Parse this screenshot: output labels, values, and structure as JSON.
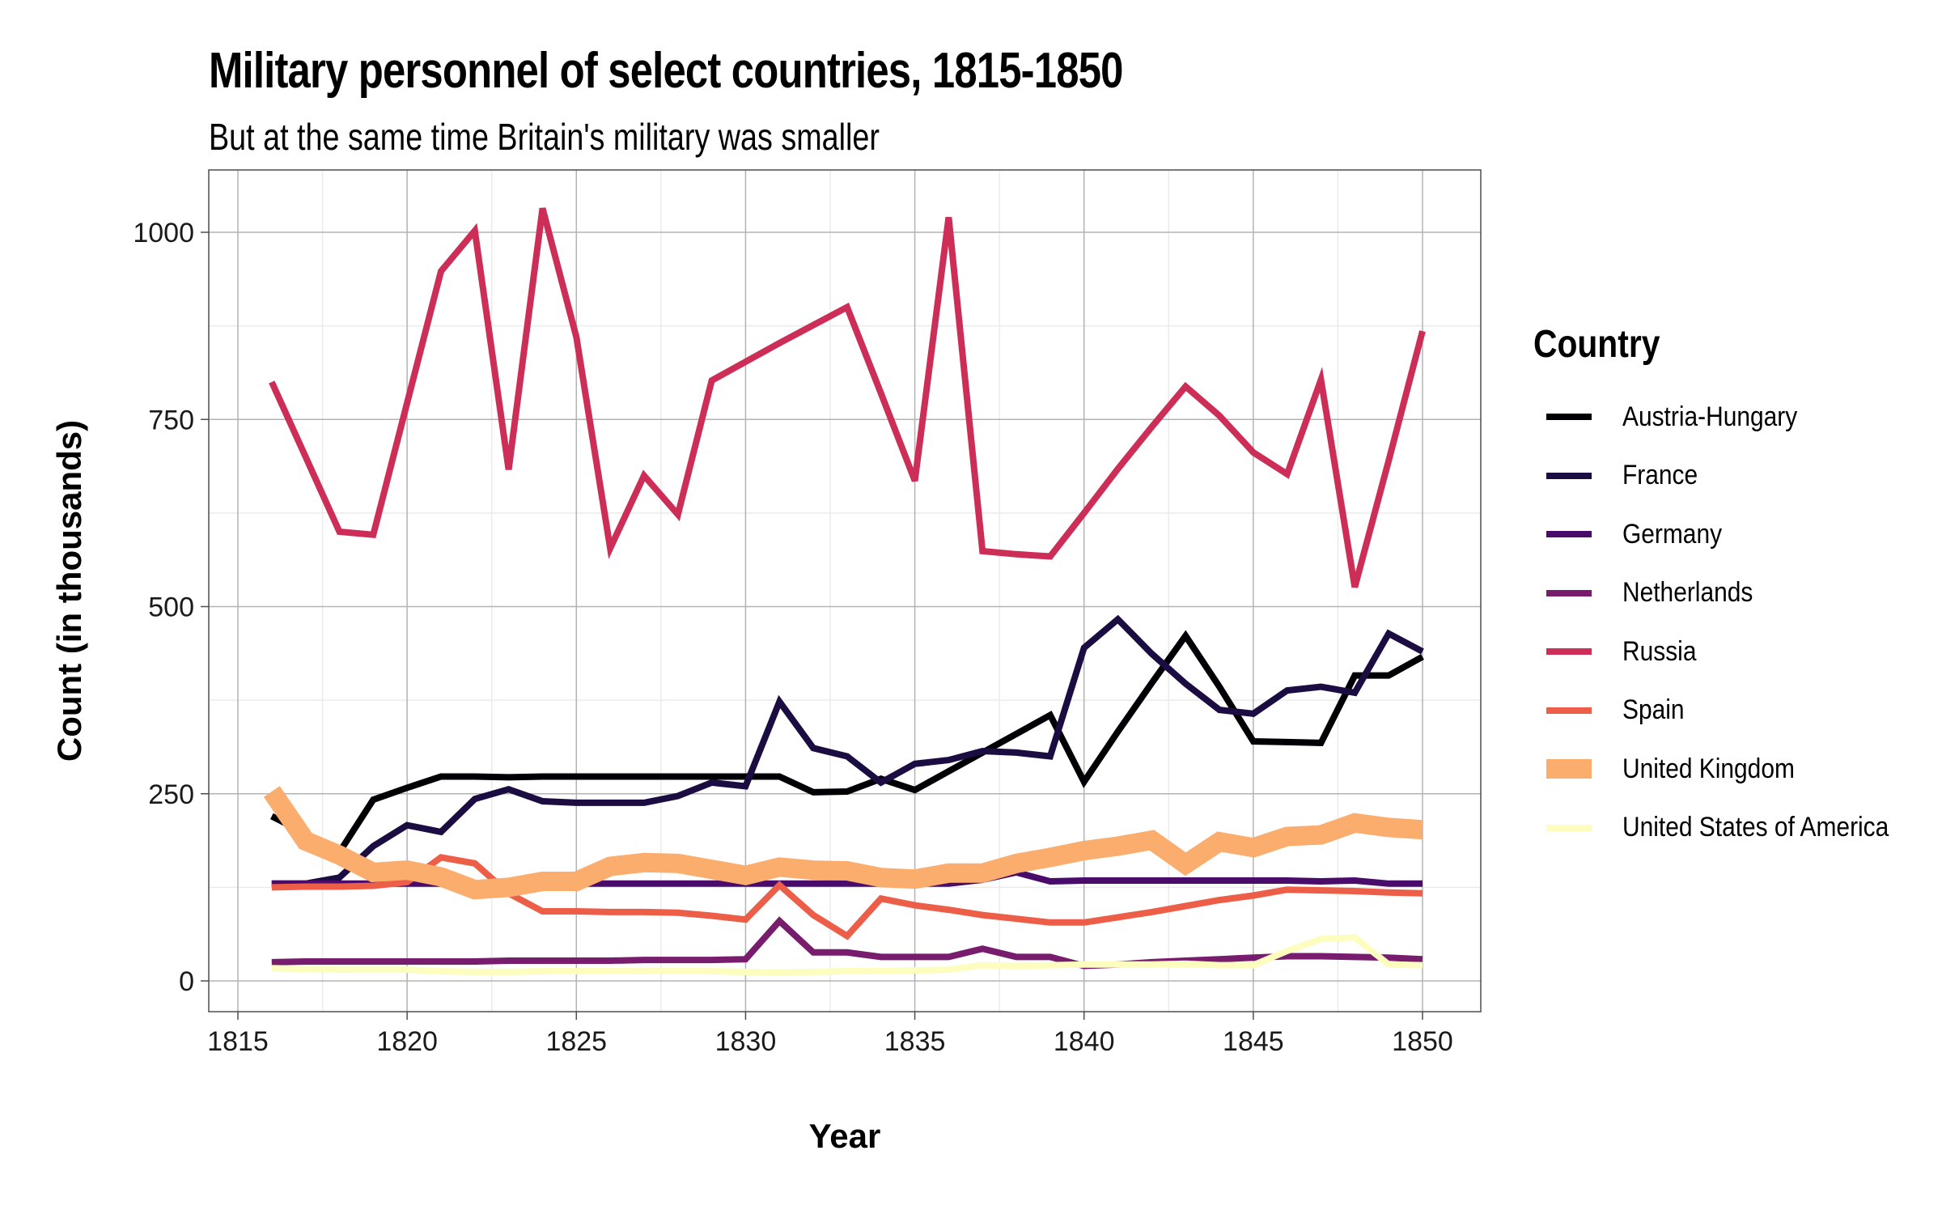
{
  "chart_data": {
    "type": "line",
    "title": "Military personnel of select countries, 1815-1850",
    "subtitle": "But at the same time Britain's military was smaller",
    "xlabel": "Year",
    "ylabel": "Count (in thousands)",
    "xlim": [
      1815,
      1850
    ],
    "ylim": [
      0,
      1050
    ],
    "x_ticks": [
      1815,
      1820,
      1825,
      1830,
      1835,
      1840,
      1845,
      1850
    ],
    "y_ticks": [
      0,
      250,
      500,
      750,
      1000
    ],
    "grid": true,
    "legend_title": "Country",
    "legend_position": "right",
    "x": [
      1816,
      1817,
      1818,
      1819,
      1820,
      1821,
      1822,
      1823,
      1824,
      1825,
      1826,
      1827,
      1828,
      1829,
      1830,
      1831,
      1832,
      1833,
      1834,
      1835,
      1836,
      1837,
      1838,
      1839,
      1840,
      1841,
      1842,
      1843,
      1844,
      1845,
      1846,
      1847,
      1848,
      1849,
      1850
    ],
    "series": [
      {
        "name": "Austria-Hungary",
        "color": "#000004",
        "emphasis": false,
        "values": [
          220,
          197,
          172,
          242,
          258,
          273,
          273,
          272,
          273,
          273,
          273,
          273,
          273,
          273,
          273,
          273,
          252,
          253,
          270,
          255,
          280,
          305,
          330,
          355,
          266,
          333,
          398,
          461,
          393,
          320,
          319,
          318,
          408,
          408,
          433
        ]
      },
      {
        "name": "France",
        "color": "#1b0c41",
        "emphasis": false,
        "values": [
          130,
          130,
          138,
          180,
          208,
          199,
          243,
          256,
          240,
          238,
          238,
          238,
          247,
          265,
          260,
          373,
          311,
          300,
          265,
          290,
          295,
          307,
          305,
          300,
          445,
          483,
          437,
          397,
          362,
          357,
          388,
          393,
          385,
          464,
          440
        ]
      },
      {
        "name": "Germany",
        "color": "#4a0c6b",
        "emphasis": false,
        "values": [
          130,
          130,
          130,
          130,
          130,
          130,
          130,
          130,
          130,
          130,
          130,
          130,
          130,
          130,
          130,
          130,
          130,
          130,
          130,
          130,
          130,
          135,
          145,
          133,
          134,
          134,
          134,
          134,
          134,
          134,
          134,
          133,
          134,
          130,
          130
        ]
      },
      {
        "name": "Netherlands",
        "color": "#781c6d",
        "emphasis": false,
        "values": [
          25,
          26,
          26,
          26,
          26,
          26,
          26,
          27,
          27,
          27,
          27,
          28,
          28,
          28,
          29,
          80,
          38,
          38,
          32,
          32,
          32,
          43,
          32,
          32,
          20,
          22,
          25,
          27,
          29,
          31,
          33,
          33,
          32,
          31,
          29
        ]
      },
      {
        "name": "Russia",
        "color": "#cc2e58",
        "emphasis": false,
        "values": [
          800,
          700,
          600,
          596,
          772,
          948,
          1002,
          683,
          1032,
          860,
          578,
          675,
          623,
          802,
          827,
          852,
          876,
          900,
          785,
          668,
          1020,
          574,
          570,
          567,
          625,
          684,
          740,
          794,
          755,
          706,
          677,
          803,
          526,
          695,
          868
        ]
      },
      {
        "name": "Spain",
        "color": "#ed5e48",
        "emphasis": false,
        "values": [
          125,
          126,
          126,
          127,
          132,
          165,
          157,
          117,
          93,
          93,
          92,
          92,
          91,
          87,
          82,
          128,
          88,
          60,
          110,
          101,
          95,
          88,
          83,
          78,
          78,
          85,
          92,
          100,
          108,
          114,
          122,
          121,
          120,
          118,
          117
        ]
      },
      {
        "name": "United Kingdom",
        "color": "#fbad6e",
        "emphasis": true,
        "values": [
          253,
          187,
          168,
          145,
          148,
          139,
          122,
          125,
          133,
          133,
          153,
          158,
          157,
          149,
          141,
          152,
          148,
          147,
          138,
          136,
          144,
          144,
          157,
          165,
          174,
          180,
          188,
          156,
          186,
          178,
          193,
          195,
          211,
          205,
          202
        ]
      },
      {
        "name": "United States of America",
        "color": "#fcfdbf",
        "emphasis": false,
        "values": [
          17,
          16,
          15,
          15,
          15,
          13,
          12,
          12,
          13,
          13,
          13,
          13,
          13,
          13,
          12,
          11,
          12,
          13,
          13,
          14,
          15,
          21,
          20,
          21,
          22,
          22,
          22,
          23,
          21,
          21,
          40,
          56,
          58,
          22,
          21
        ]
      }
    ]
  }
}
